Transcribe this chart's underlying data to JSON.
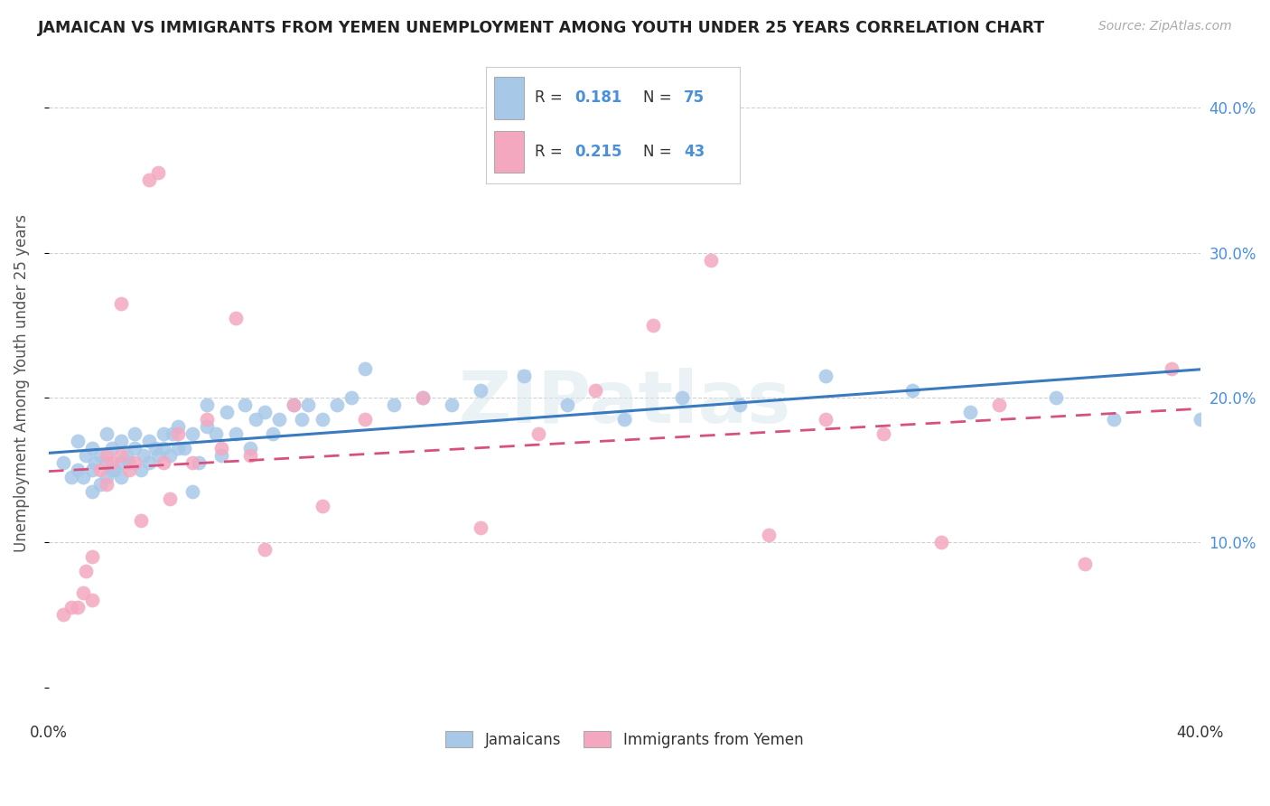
{
  "title": "JAMAICAN VS IMMIGRANTS FROM YEMEN UNEMPLOYMENT AMONG YOUTH UNDER 25 YEARS CORRELATION CHART",
  "source": "Source: ZipAtlas.com",
  "ylabel": "Unemployment Among Youth under 25 years",
  "xlim": [
    0.0,
    0.4
  ],
  "ylim": [
    -0.02,
    0.44
  ],
  "yticks": [
    0.0,
    0.1,
    0.2,
    0.3,
    0.4
  ],
  "xticks": [
    0.0,
    0.08,
    0.16,
    0.24,
    0.32,
    0.4
  ],
  "blue_color": "#a8c8e8",
  "pink_color": "#f4a8c0",
  "blue_line_color": "#3a7abf",
  "pink_line_color": "#d85080",
  "R_blue": 0.181,
  "N_blue": 75,
  "R_pink": 0.215,
  "N_pink": 43,
  "blue_scatter_x": [
    0.005,
    0.008,
    0.01,
    0.01,
    0.012,
    0.013,
    0.015,
    0.015,
    0.015,
    0.016,
    0.018,
    0.018,
    0.02,
    0.02,
    0.02,
    0.022,
    0.022,
    0.023,
    0.025,
    0.025,
    0.025,
    0.027,
    0.028,
    0.03,
    0.03,
    0.032,
    0.033,
    0.035,
    0.035,
    0.037,
    0.038,
    0.04,
    0.04,
    0.042,
    0.043,
    0.045,
    0.045,
    0.047,
    0.05,
    0.05,
    0.052,
    0.055,
    0.055,
    0.058,
    0.06,
    0.062,
    0.065,
    0.068,
    0.07,
    0.072,
    0.075,
    0.078,
    0.08,
    0.085,
    0.088,
    0.09,
    0.095,
    0.1,
    0.105,
    0.11,
    0.12,
    0.13,
    0.14,
    0.15,
    0.165,
    0.18,
    0.2,
    0.22,
    0.24,
    0.27,
    0.3,
    0.32,
    0.35,
    0.37,
    0.4
  ],
  "blue_scatter_y": [
    0.155,
    0.145,
    0.15,
    0.17,
    0.145,
    0.16,
    0.135,
    0.15,
    0.165,
    0.155,
    0.14,
    0.16,
    0.145,
    0.155,
    0.175,
    0.15,
    0.165,
    0.15,
    0.145,
    0.155,
    0.17,
    0.16,
    0.155,
    0.165,
    0.175,
    0.15,
    0.16,
    0.155,
    0.17,
    0.165,
    0.16,
    0.165,
    0.175,
    0.16,
    0.175,
    0.165,
    0.18,
    0.165,
    0.135,
    0.175,
    0.155,
    0.18,
    0.195,
    0.175,
    0.16,
    0.19,
    0.175,
    0.195,
    0.165,
    0.185,
    0.19,
    0.175,
    0.185,
    0.195,
    0.185,
    0.195,
    0.185,
    0.195,
    0.2,
    0.22,
    0.195,
    0.2,
    0.195,
    0.205,
    0.215,
    0.195,
    0.185,
    0.2,
    0.195,
    0.215,
    0.205,
    0.19,
    0.2,
    0.185,
    0.185
  ],
  "pink_scatter_x": [
    0.005,
    0.008,
    0.01,
    0.012,
    0.013,
    0.015,
    0.015,
    0.018,
    0.02,
    0.02,
    0.022,
    0.025,
    0.025,
    0.028,
    0.03,
    0.032,
    0.035,
    0.038,
    0.04,
    0.042,
    0.045,
    0.05,
    0.055,
    0.06,
    0.065,
    0.07,
    0.075,
    0.085,
    0.095,
    0.11,
    0.13,
    0.15,
    0.17,
    0.19,
    0.21,
    0.23,
    0.25,
    0.27,
    0.29,
    0.31,
    0.33,
    0.36,
    0.39
  ],
  "pink_scatter_y": [
    0.05,
    0.055,
    0.055,
    0.065,
    0.08,
    0.09,
    0.06,
    0.15,
    0.14,
    0.16,
    0.155,
    0.16,
    0.265,
    0.15,
    0.155,
    0.115,
    0.35,
    0.355,
    0.155,
    0.13,
    0.175,
    0.155,
    0.185,
    0.165,
    0.255,
    0.16,
    0.095,
    0.195,
    0.125,
    0.185,
    0.2,
    0.11,
    0.175,
    0.205,
    0.25,
    0.295,
    0.105,
    0.185,
    0.175,
    0.1,
    0.195,
    0.085,
    0.22
  ],
  "watermark": "ZIPatlas",
  "background_color": "#ffffff",
  "grid_color": "#d0d0d0"
}
